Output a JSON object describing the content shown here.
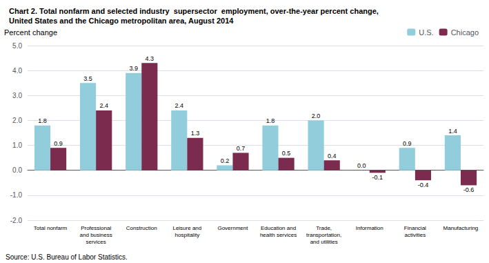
{
  "chart_data": {
    "type": "bar",
    "title": "Chart 2. Total nonfarm and selected industry  supersector  employment, over-the-year percent change,\nUnited States and the Chicago metropolitan area, August 2014",
    "y_label": "Percent change",
    "annotations": [
      "Source: U.S. Bureau of Labor Statistics."
    ],
    "categories": [
      "Total nonfarm",
      "Professional\nand business\nservices",
      "Construction",
      "Leisure and\nhospitality",
      "Government",
      "Education and\nhealth services",
      "Trade,\ntransportation,\nand utilities",
      "Information",
      "Financial\nactivities",
      "Manufacturing"
    ],
    "series": [
      {
        "name": "U.S.",
        "color": "#92CDDC",
        "values": [
          1.8,
          3.5,
          3.9,
          2.4,
          0.2,
          1.8,
          2.0,
          0.0,
          0.9,
          1.4
        ],
        "value_labels": [
          "1.8",
          "3.5",
          "3.9",
          "2.4",
          "0.2",
          "1.8",
          "2.0",
          "0.0",
          "0.9",
          "1.4"
        ]
      },
      {
        "name": "Chicago",
        "color": "#7B2C4E",
        "values": [
          0.9,
          2.4,
          4.3,
          1.3,
          0.7,
          0.5,
          0.4,
          -0.1,
          -0.4,
          -0.6
        ],
        "value_labels": [
          "0.9",
          "2.4",
          "4.3",
          "1.3",
          "0.7",
          "0.5",
          "0.4",
          "-0.1",
          "-0.4",
          "-0.6"
        ]
      }
    ],
    "ylim": [
      -2.0,
      5.0
    ],
    "yticks": [
      {
        "value": -2.0,
        "label": "-2.0"
      },
      {
        "value": -1.0,
        "label": "-1.0"
      },
      {
        "value": 0.0,
        "label": "0.0"
      },
      {
        "value": 1.0,
        "label": "1.0"
      },
      {
        "value": 2.0,
        "label": "2.0"
      },
      {
        "value": 3.0,
        "label": "3.0"
      },
      {
        "value": 4.0,
        "label": "4.0"
      },
      {
        "value": 5.0,
        "label": "5.0"
      }
    ],
    "grid": true,
    "legend": "upper right",
    "data_labels": true
  }
}
